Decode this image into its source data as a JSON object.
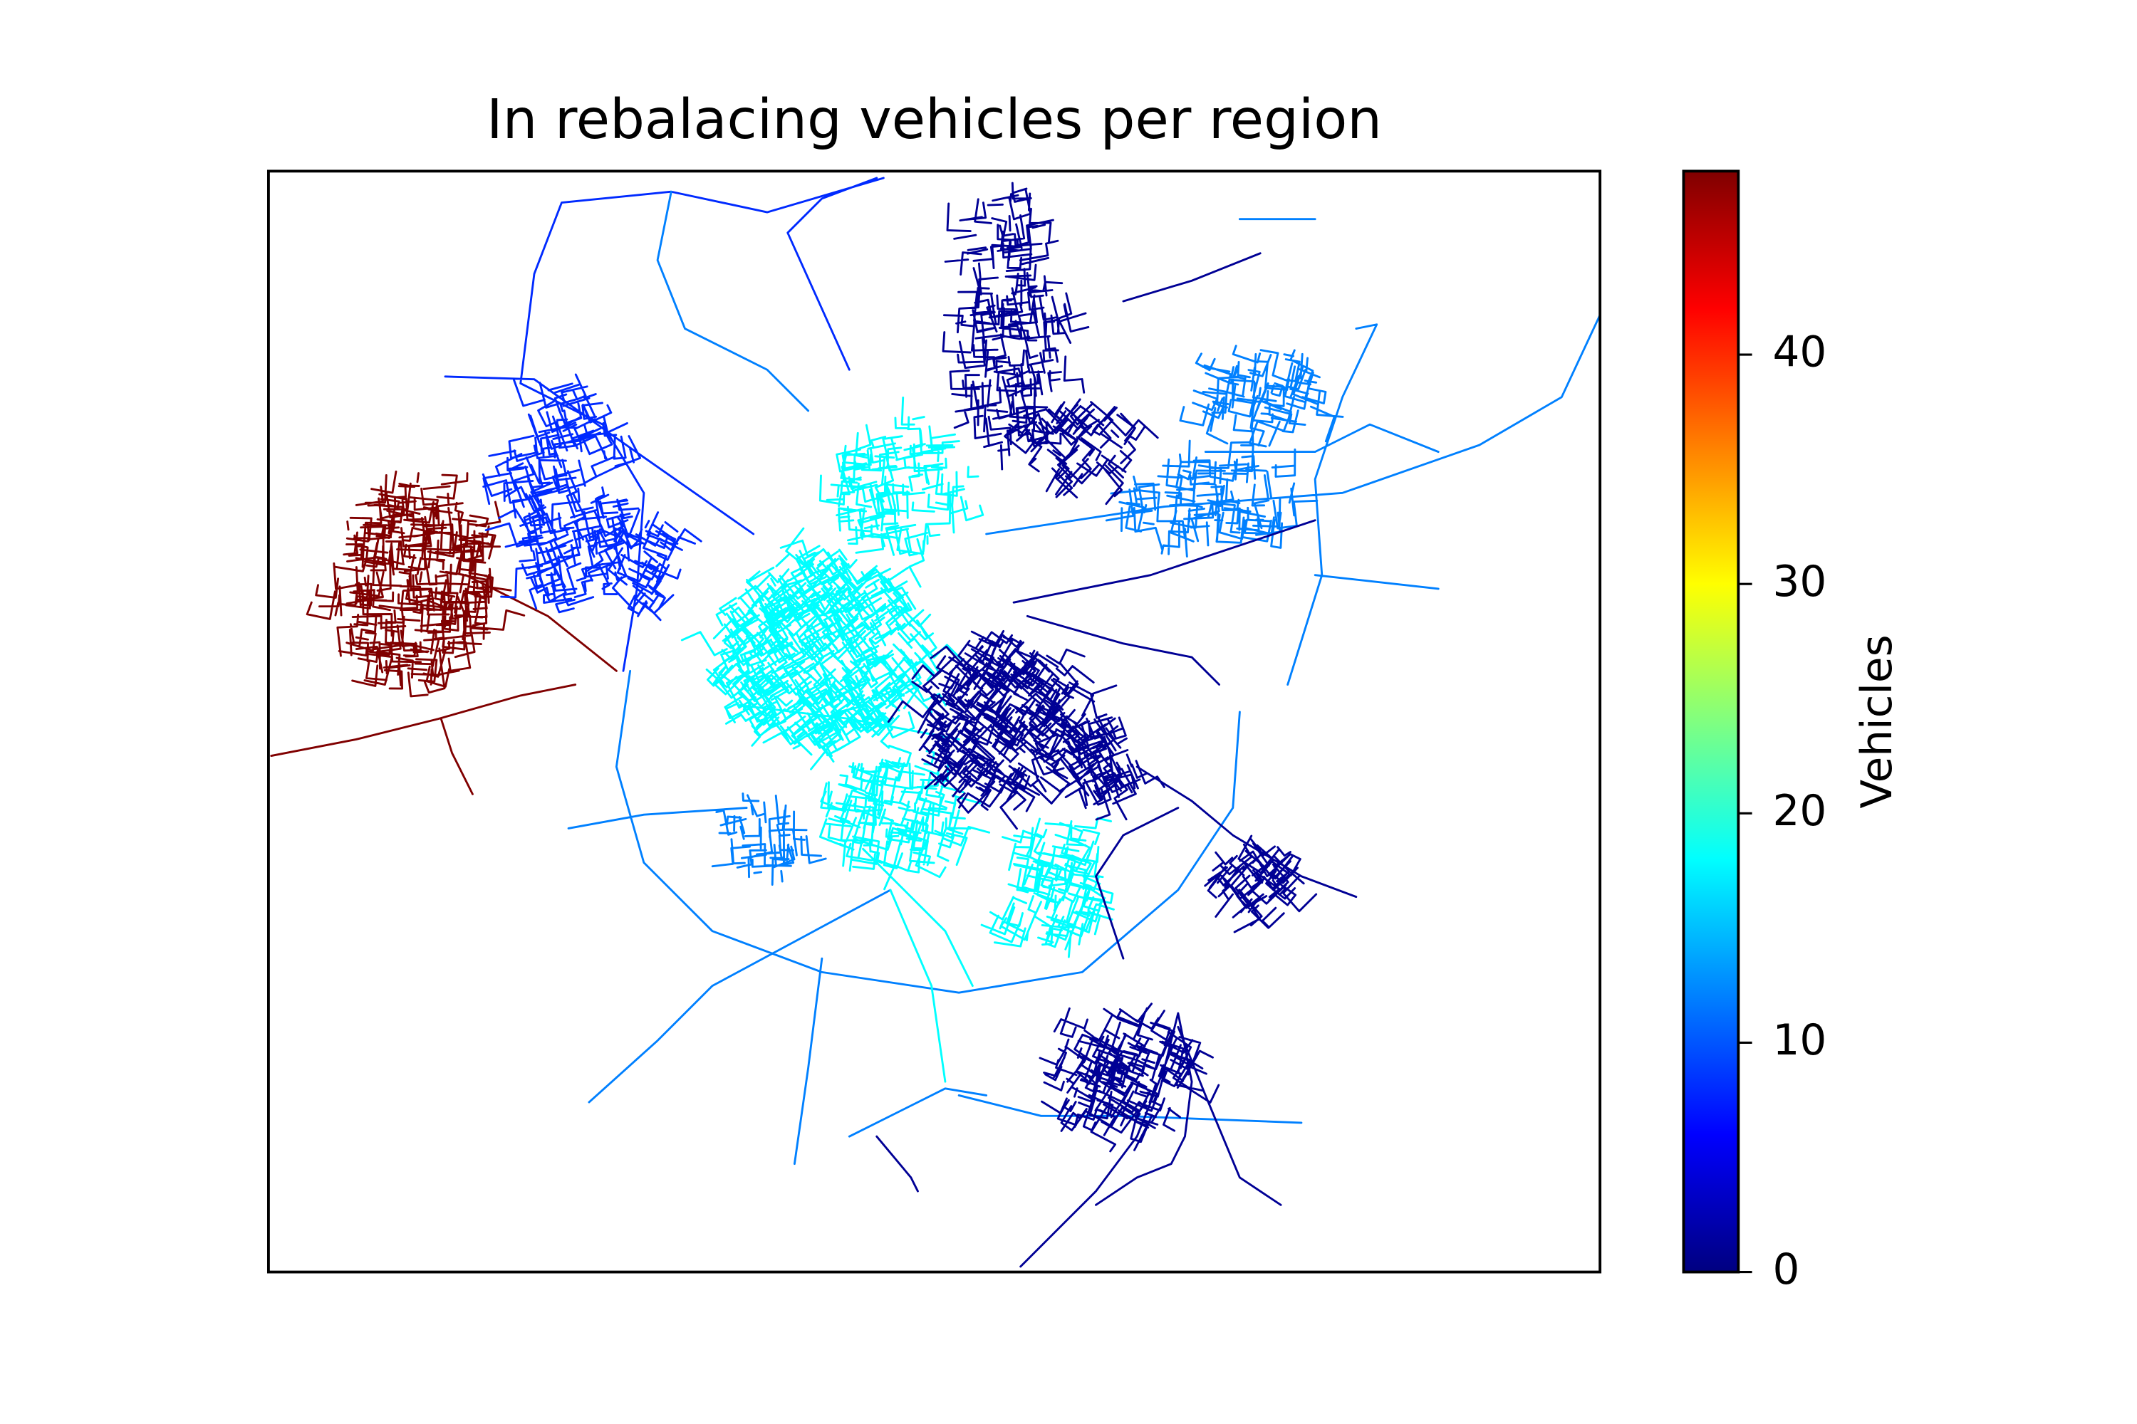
{
  "chart_data": {
    "type": "map",
    "title": "In rebalacing vehicles per region",
    "values": [
      48,
      8,
      12,
      18,
      1
    ],
    "colormap": "jet",
    "colorbar": {
      "label": "Vehicles",
      "ylim": [
        0,
        48
      ],
      "yticks": [
        0,
        10,
        20,
        30,
        40
      ]
    }
  }
}
